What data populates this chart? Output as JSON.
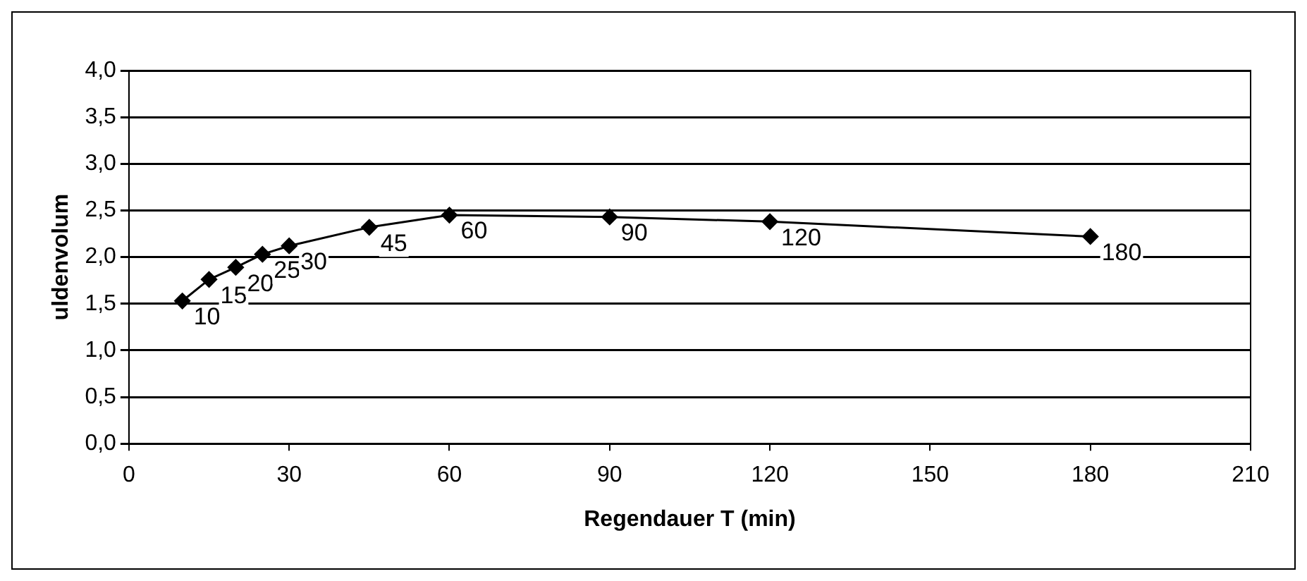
{
  "chart_data": {
    "type": "line",
    "xlabel": "Regendauer T (min)",
    "ylabel": "uldenvolum",
    "x": [
      10,
      15,
      20,
      25,
      30,
      45,
      60,
      90,
      120,
      180
    ],
    "series": [
      {
        "color": "#000000",
        "values": [
          1.53,
          1.76,
          1.89,
          2.03,
          2.12,
          2.32,
          2.45,
          2.43,
          2.38,
          2.22
        ]
      }
    ],
    "xlim": [
      0,
      210
    ],
    "xticks": [
      0,
      30,
      60,
      90,
      120,
      150,
      180,
      210
    ],
    "ylim": [
      0,
      4
    ],
    "yticks": [
      {
        "value": 0,
        "label": "0,0"
      },
      {
        "value": 0.5,
        "label": "0,5"
      },
      {
        "value": 1,
        "label": "1,0"
      },
      {
        "value": 1.5,
        "label": "1,5"
      },
      {
        "value": 2,
        "label": "2,0"
      },
      {
        "value": 2.5,
        "label": "2,5"
      },
      {
        "value": 3,
        "label": "3,0"
      },
      {
        "value": 3.5,
        "label": "3,5"
      },
      {
        "value": 4,
        "label": "4,0"
      }
    ],
    "grid": "y",
    "legend": false,
    "marker": "diamond",
    "line_style": "solid",
    "annotations": [
      {
        "text": "10",
        "x": 10,
        "y": 1.53
      },
      {
        "text": "15",
        "x": 15,
        "y": 1.76
      },
      {
        "text": "20",
        "x": 20,
        "y": 1.89
      },
      {
        "text": "25",
        "x": 25,
        "y": 2.03
      },
      {
        "text": "30",
        "x": 30,
        "y": 2.12
      },
      {
        "text": "45",
        "x": 45,
        "y": 2.32
      },
      {
        "text": "60",
        "x": 60,
        "y": 2.45
      },
      {
        "text": "90",
        "x": 90,
        "y": 2.43
      },
      {
        "text": "120",
        "x": 120,
        "y": 2.38
      },
      {
        "text": "180",
        "x": 180,
        "y": 2.22
      }
    ]
  }
}
